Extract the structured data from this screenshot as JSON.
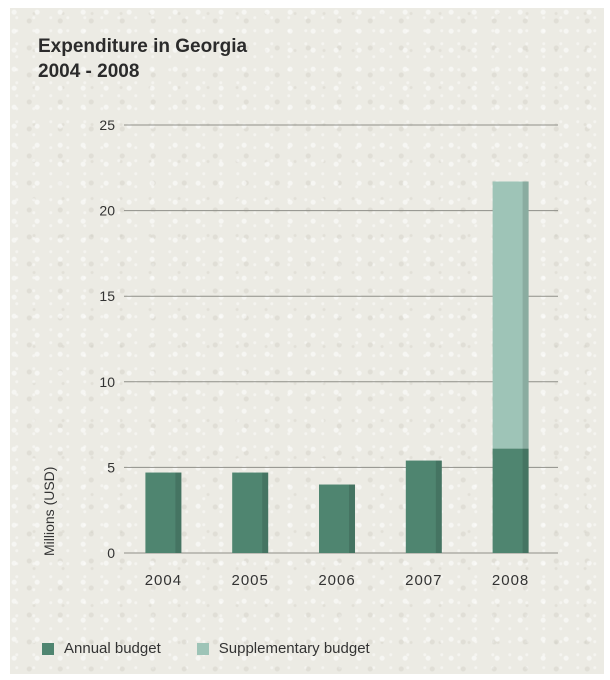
{
  "chart_data": {
    "type": "bar",
    "stacked": true,
    "title": "Expenditure in Georgia",
    "subtitle": "2004 - 2008",
    "ylabel": "Millions (USD)",
    "xlabel": "",
    "ylim": [
      0,
      25
    ],
    "yticks": [
      "0",
      "5",
      "10",
      "15",
      "20",
      "25"
    ],
    "grid": true,
    "legend_position": "bottom-left",
    "categories": [
      "2004",
      "2005",
      "2006",
      "2007",
      "2008"
    ],
    "series": [
      {
        "name": "Annual budget",
        "color": "#4f8570",
        "values": [
          4.7,
          4.7,
          4.0,
          5.4,
          6.1
        ]
      },
      {
        "name": "Supplementary budget",
        "color": "#9ec4b7",
        "values": [
          0,
          0,
          0,
          0,
          15.6
        ]
      }
    ]
  }
}
